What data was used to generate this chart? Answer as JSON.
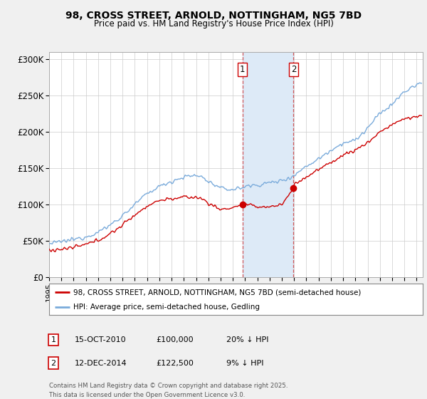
{
  "title": "98, CROSS STREET, ARNOLD, NOTTINGHAM, NG5 7BD",
  "subtitle": "Price paid vs. HM Land Registry's House Price Index (HPI)",
  "xlim_start": 1995.0,
  "xlim_end": 2025.5,
  "ylim": [
    0,
    310000
  ],
  "yticks": [
    0,
    50000,
    100000,
    150000,
    200000,
    250000,
    300000
  ],
  "ytick_labels": [
    "£0",
    "£50K",
    "£100K",
    "£150K",
    "£200K",
    "£250K",
    "£300K"
  ],
  "sale1_date": 2010.79,
  "sale1_price": 100000,
  "sale2_date": 2014.95,
  "sale2_price": 122500,
  "highlight_color": "#ddeaf7",
  "red_line_color": "#cc0000",
  "blue_line_color": "#7aabdb",
  "legend1_label": "98, CROSS STREET, ARNOLD, NOTTINGHAM, NG5 7BD (semi-detached house)",
  "legend2_label": "HPI: Average price, semi-detached house, Gedling",
  "table_entries": [
    {
      "num": "1",
      "date": "15-OCT-2010",
      "price": "£100,000",
      "hpi": "20% ↓ HPI"
    },
    {
      "num": "2",
      "date": "12-DEC-2014",
      "price": "£122,500",
      "hpi": "9% ↓ HPI"
    }
  ],
  "footer": "Contains HM Land Registry data © Crown copyright and database right 2025.\nThis data is licensed under the Open Government Licence v3.0.",
  "background_color": "#f0f0f0",
  "plot_bg_color": "#ffffff",
  "grid_color": "#cccccc"
}
